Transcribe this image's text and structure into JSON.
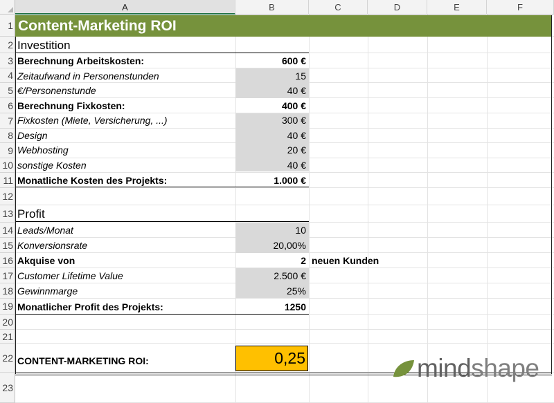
{
  "columns": [
    "A",
    "B",
    "C",
    "D",
    "E",
    "F"
  ],
  "rows": [
    "1",
    "2",
    "3",
    "4",
    "5",
    "6",
    "7",
    "8",
    "9",
    "10",
    "11",
    "12",
    "13",
    "14",
    "15",
    "16",
    "17",
    "18",
    "19",
    "20",
    "21",
    "22",
    "23"
  ],
  "title": "Content-Marketing ROI",
  "investition": {
    "heading": "Investition",
    "arbeitskosten_label": "Berechnung Arbeitskosten:",
    "arbeitskosten_value": "600 €",
    "zeitaufwand_label": "Zeitaufwand in Personenstunden",
    "zeitaufwand_value": "15",
    "personenstunde_label": "€/Personenstunde",
    "personenstunde_value": "40 €",
    "fixkosten_label": "Berechnung Fixkosten:",
    "fixkosten_value": "400 €",
    "fixkosten_detail_label": "Fixkosten (Miete, Versicherung, ...)",
    "fixkosten_detail_value": "300 €",
    "design_label": "Design",
    "design_value": "40 €",
    "webhosting_label": "Webhosting",
    "webhosting_value": "20 €",
    "sonstige_label": "sonstige Kosten",
    "sonstige_value": "40 €",
    "monatliche_kosten_label": "Monatliche Kosten des Projekts:",
    "monatliche_kosten_value": "1.000 €"
  },
  "profit": {
    "heading": "Profit",
    "leads_label": "Leads/Monat",
    "leads_value": "10",
    "konversion_label": "Konversionsrate",
    "konversion_value": "20,00%",
    "akquise_label": "Akquise von",
    "akquise_value": "2",
    "akquise_suffix": "neuen Kunden",
    "clv_label": "Customer Lifetime Value",
    "clv_value": "2.500 €",
    "marge_label": "Gewinnmarge",
    "marge_value": "25%",
    "monatlicher_profit_label": "Monatlicher Profit des Projekts:",
    "monatlicher_profit_value": "1250"
  },
  "roi": {
    "label": "CONTENT-MARKETING ROI:",
    "value": "0,25"
  },
  "logo": {
    "part1": "mind",
    "part2": "shape",
    "leaf_color": "#76923c"
  },
  "colors": {
    "title_bg": "#76923c",
    "shade": "#d9d9d9",
    "roi_bg": "#ffc000"
  }
}
